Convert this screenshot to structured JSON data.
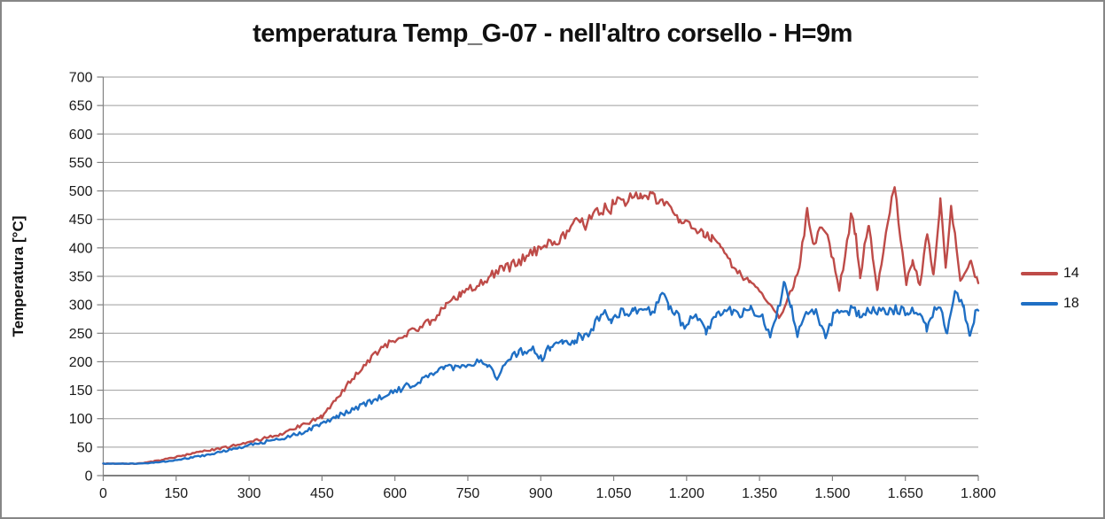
{
  "chart_data": {
    "type": "line",
    "title": "temperatura Temp_G-07 - nell'altro corsello - H=9m",
    "xlabel": "",
    "ylabel": "Temperatura [°C]",
    "xlim": [
      0,
      1800
    ],
    "ylim": [
      0,
      700
    ],
    "grid": true,
    "legend_position": "right",
    "x_ticks": {
      "values": [
        0,
        150,
        300,
        450,
        600,
        750,
        900,
        1050,
        1200,
        1350,
        1500,
        1650,
        1800
      ],
      "labels": [
        "0",
        "150",
        "300",
        "450",
        "600",
        "750",
        "900",
        "1.050",
        "1.200",
        "1.350",
        "1.500",
        "1.650",
        "1.800"
      ]
    },
    "y_ticks": {
      "values": [
        0,
        50,
        100,
        150,
        200,
        250,
        300,
        350,
        400,
        450,
        500,
        550,
        600,
        650,
        700
      ],
      "labels": [
        "0",
        "50",
        "100",
        "150",
        "200",
        "250",
        "300",
        "350",
        "400",
        "450",
        "500",
        "550",
        "600",
        "650",
        "700"
      ]
    },
    "anchor_format": "[x, temperature_C, noise_amplitude_C]",
    "sampling_step": 4,
    "series": [
      {
        "name": "14",
        "color": "#BE4B48",
        "seed": 91,
        "anchors": [
          [
            0,
            21,
            0.5
          ],
          [
            70,
            21,
            0.5
          ],
          [
            120,
            27,
            1
          ],
          [
            180,
            38,
            1.5
          ],
          [
            240,
            48,
            2
          ],
          [
            300,
            58,
            2.5
          ],
          [
            360,
            72,
            3
          ],
          [
            420,
            92,
            3
          ],
          [
            450,
            104,
            3.5
          ],
          [
            480,
            135,
            4
          ],
          [
            520,
            178,
            5
          ],
          [
            560,
            214,
            5
          ],
          [
            600,
            240,
            6
          ],
          [
            640,
            256,
            6
          ],
          [
            675,
            272,
            7
          ],
          [
            705,
            300,
            7
          ],
          [
            735,
            318,
            7
          ],
          [
            765,
            332,
            8
          ],
          [
            800,
            352,
            9
          ],
          [
            855,
            376,
            10
          ],
          [
            900,
            400,
            11
          ],
          [
            930,
            414,
            12
          ],
          [
            958,
            428,
            13
          ],
          [
            973,
            462,
            10
          ],
          [
            988,
            442,
            13
          ],
          [
            1020,
            460,
            13
          ],
          [
            1050,
            474,
            12
          ],
          [
            1080,
            487,
            11
          ],
          [
            1105,
            497,
            11
          ],
          [
            1130,
            488,
            11
          ],
          [
            1160,
            480,
            10
          ],
          [
            1186,
            452,
            10
          ],
          [
            1210,
            437,
            9
          ],
          [
            1235,
            424,
            9
          ],
          [
            1252,
            416,
            8
          ],
          [
            1270,
            398,
            8
          ],
          [
            1285,
            378,
            8
          ],
          [
            1305,
            358,
            7
          ],
          [
            1330,
            336,
            7
          ],
          [
            1356,
            321,
            6
          ],
          [
            1375,
            296,
            5
          ],
          [
            1390,
            277,
            4
          ],
          [
            1405,
            300,
            5
          ],
          [
            1420,
            336,
            6
          ],
          [
            1434,
            378,
            7
          ],
          [
            1448,
            466,
            8
          ],
          [
            1462,
            402,
            10
          ],
          [
            1478,
            444,
            10
          ],
          [
            1490,
            420,
            10
          ],
          [
            1502,
            378,
            10
          ],
          [
            1514,
            326,
            7
          ],
          [
            1526,
            388,
            9
          ],
          [
            1538,
            458,
            9
          ],
          [
            1548,
            420,
            9
          ],
          [
            1557,
            352,
            7
          ],
          [
            1566,
            398,
            9
          ],
          [
            1575,
            434,
            9
          ],
          [
            1584,
            380,
            9
          ],
          [
            1593,
            326,
            7
          ],
          [
            1606,
            400,
            9
          ],
          [
            1618,
            468,
            8
          ],
          [
            1628,
            510,
            5
          ],
          [
            1640,
            420,
            9
          ],
          [
            1652,
            336,
            7
          ],
          [
            1665,
            378,
            7
          ],
          [
            1680,
            333,
            7
          ],
          [
            1695,
            430,
            7
          ],
          [
            1708,
            352,
            7
          ],
          [
            1722,
            482,
            7
          ],
          [
            1733,
            366,
            7
          ],
          [
            1744,
            476,
            7
          ],
          [
            1755,
            400,
            8
          ],
          [
            1763,
            340,
            7
          ],
          [
            1775,
            360,
            7
          ],
          [
            1785,
            380,
            5
          ],
          [
            1793,
            352,
            5
          ],
          [
            1800,
            338,
            3
          ]
        ]
      },
      {
        "name": "18",
        "color": "#1F6FC4",
        "seed": 57,
        "anchors": [
          [
            0,
            21,
            0.5
          ],
          [
            80,
            21,
            0.5
          ],
          [
            140,
            26,
            1
          ],
          [
            200,
            34,
            1.5
          ],
          [
            260,
            45,
            2
          ],
          [
            300,
            54,
            2.5
          ],
          [
            360,
            63,
            3
          ],
          [
            420,
            79,
            3.5
          ],
          [
            450,
            92,
            4
          ],
          [
            480,
            104,
            4
          ],
          [
            520,
            117,
            5
          ],
          [
            560,
            134,
            5
          ],
          [
            600,
            148,
            6
          ],
          [
            640,
            162,
            6
          ],
          [
            675,
            179,
            6
          ],
          [
            700,
            186,
            7
          ],
          [
            730,
            192,
            7
          ],
          [
            765,
            200,
            8
          ],
          [
            790,
            196,
            7
          ],
          [
            810,
            170,
            5
          ],
          [
            830,
            204,
            7
          ],
          [
            855,
            217,
            8
          ],
          [
            880,
            222,
            8
          ],
          [
            903,
            206,
            6
          ],
          [
            920,
            227,
            8
          ],
          [
            945,
            234,
            8
          ],
          [
            970,
            240,
            9
          ],
          [
            1000,
            252,
            9
          ],
          [
            1028,
            288,
            7
          ],
          [
            1045,
            273,
            9
          ],
          [
            1065,
            285,
            9
          ],
          [
            1090,
            288,
            9
          ],
          [
            1110,
            291,
            9
          ],
          [
            1130,
            289,
            9
          ],
          [
            1150,
            318,
            7
          ],
          [
            1163,
            300,
            9
          ],
          [
            1180,
            284,
            9
          ],
          [
            1196,
            259,
            7
          ],
          [
            1215,
            287,
            9
          ],
          [
            1240,
            253,
            7
          ],
          [
            1262,
            287,
            9
          ],
          [
            1285,
            290,
            9
          ],
          [
            1310,
            286,
            9
          ],
          [
            1332,
            291,
            9
          ],
          [
            1352,
            284,
            9
          ],
          [
            1372,
            248,
            6
          ],
          [
            1388,
            289,
            9
          ],
          [
            1402,
            342,
            6
          ],
          [
            1416,
            290,
            9
          ],
          [
            1428,
            246,
            6
          ],
          [
            1446,
            289,
            9
          ],
          [
            1466,
            287,
            9
          ],
          [
            1486,
            244,
            6
          ],
          [
            1506,
            289,
            9
          ],
          [
            1530,
            291,
            9
          ],
          [
            1556,
            286,
            9
          ],
          [
            1580,
            289,
            9
          ],
          [
            1606,
            287,
            9
          ],
          [
            1630,
            291,
            9
          ],
          [
            1656,
            289,
            9
          ],
          [
            1680,
            287,
            9
          ],
          [
            1694,
            256,
            6
          ],
          [
            1710,
            289,
            9
          ],
          [
            1726,
            285,
            9
          ],
          [
            1736,
            251,
            6
          ],
          [
            1753,
            326,
            7
          ],
          [
            1770,
            295,
            9
          ],
          [
            1783,
            241,
            5
          ],
          [
            1794,
            286,
            7
          ],
          [
            1800,
            290,
            4
          ]
        ]
      }
    ],
    "legend": [
      {
        "label": "14",
        "color": "#BE4B48"
      },
      {
        "label": "18",
        "color": "#1F6FC4"
      }
    ]
  },
  "colors": {
    "background": "#FFFFFF",
    "frame_border": "#868686",
    "gridline": "#9E9E9E",
    "axis": "#808080",
    "text": "#1A1A1A"
  }
}
